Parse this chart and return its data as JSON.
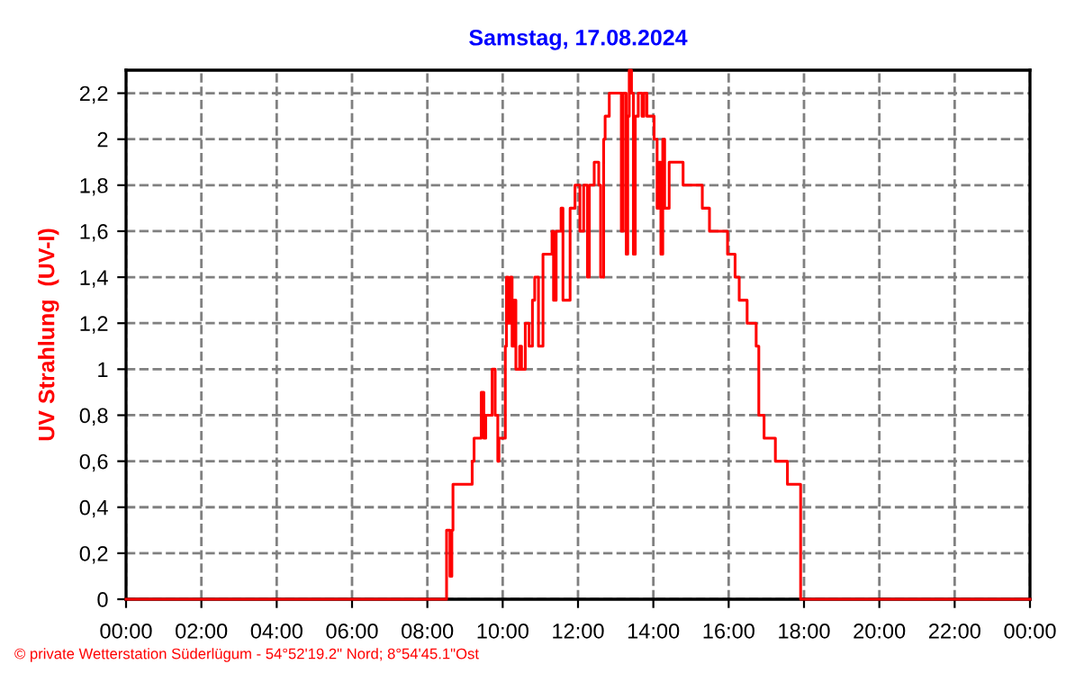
{
  "chart_data": {
    "type": "step",
    "title": "Samstag, 17.08.2024",
    "ylabel": "UV Strahlung  (UV-I)",
    "annotations": [
      "© private Wetterstation Süderlügum - 54°52'19.2\" Nord; 8°54'45.1\"Ost"
    ],
    "xlim": [
      0,
      24
    ],
    "xticks": [
      {
        "value": 0,
        "label": "00:00"
      },
      {
        "value": 2,
        "label": "02:00"
      },
      {
        "value": 4,
        "label": "04:00"
      },
      {
        "value": 6,
        "label": "06:00"
      },
      {
        "value": 8,
        "label": "08:00"
      },
      {
        "value": 10,
        "label": "10:00"
      },
      {
        "value": 12,
        "label": "12:00"
      },
      {
        "value": 14,
        "label": "14:00"
      },
      {
        "value": 16,
        "label": "16:00"
      },
      {
        "value": 18,
        "label": "18:00"
      },
      {
        "value": 20,
        "label": "20:00"
      },
      {
        "value": 22,
        "label": "22:00"
      },
      {
        "value": 24,
        "label": "00:00"
      }
    ],
    "ylim": [
      0,
      2.3
    ],
    "yticks": [
      0,
      {
        "value": 0.2,
        "label": "0,2"
      },
      {
        "value": 0.4,
        "label": "0,4"
      },
      {
        "value": 0.6,
        "label": "0,6"
      },
      {
        "value": 0.8,
        "label": "0,8"
      },
      1,
      {
        "value": 1.2,
        "label": "1,2"
      },
      {
        "value": 1.4,
        "label": "1,4"
      },
      {
        "value": 1.6,
        "label": "1,6"
      },
      {
        "value": 1.8,
        "label": "1,8"
      },
      2,
      {
        "value": 2.2,
        "label": "2,2"
      }
    ],
    "grid": true,
    "line_style": "solid",
    "marker": "none",
    "series": [
      {
        "color": "#ff0000",
        "x": [
          0,
          8.5,
          8.51,
          8.6,
          8.65,
          8.68,
          9.19,
          9.24,
          9.43,
          9.5,
          9.55,
          9.72,
          9.8,
          9.87,
          9.9,
          10.07,
          10.1,
          10.15,
          10.2,
          10.25,
          10.3,
          10.35,
          10.45,
          10.5,
          10.6,
          10.7,
          10.79,
          10.85,
          10.95,
          11.07,
          11.31,
          11.35,
          11.42,
          11.55,
          11.6,
          11.79,
          11.92,
          12.05,
          12.15,
          12.25,
          12.3,
          12.43,
          12.55,
          12.6,
          12.68,
          12.72,
          12.83,
          13.15,
          13.2,
          13.28,
          13.32,
          13.36,
          13.42,
          13.47,
          13.52,
          13.6,
          13.7,
          13.75,
          13.83,
          14.02,
          14.1,
          14.15,
          14.2,
          14.25,
          14.3,
          14.42,
          14.79,
          15.3,
          15.49,
          15.97,
          16.17,
          16.28,
          16.49,
          16.73,
          16.8,
          16.94,
          17.24,
          17.56,
          17.91,
          24
        ],
        "values": [
          0,
          0,
          0.3,
          0.1,
          0.3,
          0.5,
          0.6,
          0.7,
          0.9,
          0.7,
          0.8,
          1.0,
          0.8,
          0.6,
          0.7,
          1.1,
          1.4,
          1.2,
          1.4,
          1.1,
          1.3,
          1.0,
          1.1,
          1.0,
          1.2,
          1.1,
          1.3,
          1.4,
          1.1,
          1.5,
          1.6,
          1.3,
          1.6,
          1.7,
          1.3,
          1.7,
          1.8,
          1.6,
          1.8,
          1.4,
          1.8,
          1.9,
          1.8,
          1.4,
          2.0,
          2.1,
          2.2,
          1.6,
          2.2,
          1.5,
          2.1,
          2.3,
          2.2,
          1.5,
          2.1,
          2.2,
          2.1,
          2.2,
          2.1,
          2.0,
          1.7,
          1.9,
          1.5,
          2.0,
          1.7,
          1.9,
          1.8,
          1.7,
          1.6,
          1.5,
          1.4,
          1.3,
          1.2,
          1.1,
          0.8,
          0.7,
          0.6,
          0.5,
          0,
          0
        ]
      }
    ]
  }
}
